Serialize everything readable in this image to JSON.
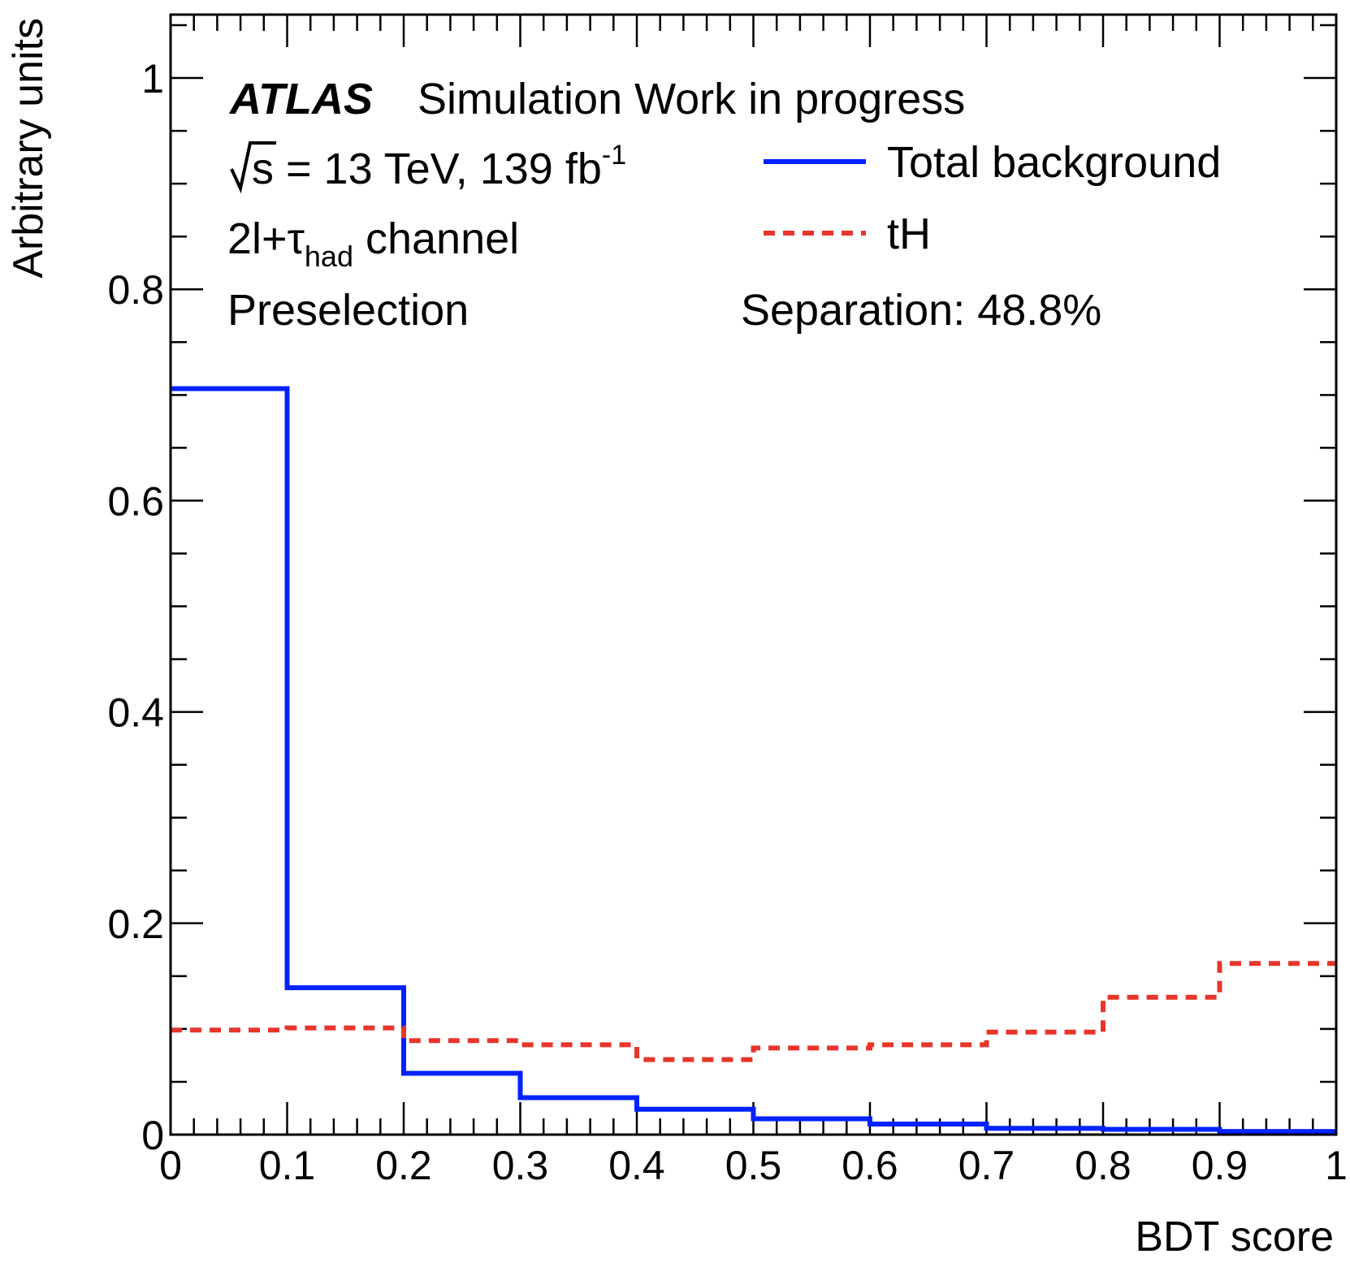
{
  "chart_data": {
    "type": "step-histogram",
    "xlabel": "BDT score",
    "ylabel": "Arbitrary units",
    "xlim": [
      0,
      1
    ],
    "ylim": [
      0,
      1.06
    ],
    "x_tick_labels": [
      "0",
      "0.1",
      "0.2",
      "0.3",
      "0.4",
      "0.5",
      "0.6",
      "0.7",
      "0.8",
      "0.9",
      "1"
    ],
    "y_tick_labels": [
      "0",
      "0.2",
      "0.4",
      "0.6",
      "0.8",
      "1"
    ],
    "bin_edges": [
      0,
      0.1,
      0.2,
      0.3,
      0.4,
      0.5,
      0.6,
      0.7,
      0.8,
      0.9,
      1.0
    ],
    "series": [
      {
        "name": "Total background",
        "color": "#0022ff",
        "style": "solid",
        "values": [
          0.706,
          0.139,
          0.058,
          0.035,
          0.024,
          0.015,
          0.01,
          0.006,
          0.005,
          0.003
        ]
      },
      {
        "name": "tH",
        "color": "#e8352b",
        "style": "dashed",
        "values": [
          0.099,
          0.101,
          0.089,
          0.085,
          0.071,
          0.082,
          0.085,
          0.097,
          0.13,
          0.162
        ]
      }
    ],
    "annotations": {
      "atlas": "ATLAS",
      "atlas_suffix": "Simulation Work in progress",
      "energy_prefix": "s = 13 TeV, 139 fb",
      "energy_sup": "-1",
      "channel_prefix": "2l+τ",
      "channel_sub": "had",
      "channel_suffix": " channel",
      "selection": "Preselection",
      "separation": "Separation: 48.8%"
    },
    "legend_position": "top-right",
    "grid": false
  }
}
